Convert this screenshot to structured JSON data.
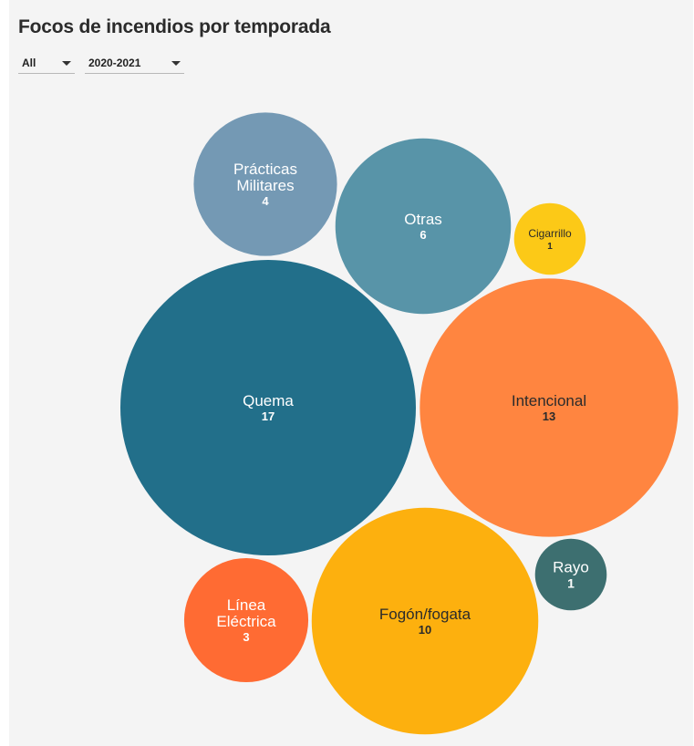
{
  "title": "Focos de incendios por temporada",
  "filters": [
    {
      "value": "All"
    },
    {
      "value": "2020-2021"
    }
  ],
  "chart_data": {
    "type": "bubble",
    "items": [
      {
        "name": "Quema",
        "lines": [
          "Quema"
        ],
        "value": 17,
        "color": "#226f8a",
        "text_color": "#ffffff"
      },
      {
        "name": "Intencional",
        "lines": [
          "Intencional"
        ],
        "value": 13,
        "color": "#ff8540",
        "text_color": "#2b2b2b"
      },
      {
        "name": "Fogón/fogata",
        "lines": [
          "Fogón/fogata"
        ],
        "value": 10,
        "color": "#fdb00e",
        "text_color": "#2b2b2b"
      },
      {
        "name": "Otras",
        "lines": [
          "Otras"
        ],
        "value": 6,
        "color": "#5894a8",
        "text_color": "#ffffff"
      },
      {
        "name": "Prácticas Militares",
        "lines": [
          "Prácticas",
          "Militares"
        ],
        "value": 4,
        "color": "#7499b4",
        "text_color": "#ffffff"
      },
      {
        "name": "Línea Eléctrica",
        "lines": [
          "Línea",
          "Eléctrica"
        ],
        "value": 3,
        "color": "#ff6b33",
        "text_color": "#ffffff"
      },
      {
        "name": "Cigarrillo",
        "lines": [
          "Cigarrillo"
        ],
        "value": 1,
        "color": "#fcc917",
        "text_color": "#2b2b2b"
      },
      {
        "name": "Rayo",
        "lines": [
          "Rayo"
        ],
        "value": 1,
        "color": "#3d6f70",
        "text_color": "#ffffff"
      }
    ]
  }
}
